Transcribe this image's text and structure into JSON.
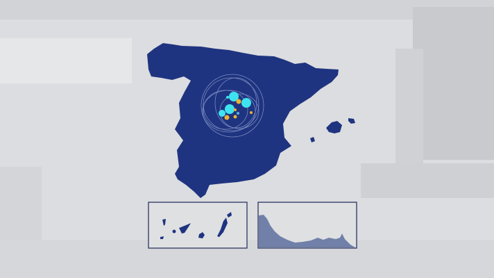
{
  "map": {
    "region": "Spain",
    "land_color": "#1f3480",
    "background_color": "#dcdde0",
    "inset_border_color": "#2a3560",
    "insets": [
      {
        "name": "canary-islands"
      },
      {
        "name": "ceuta-melilla-coast"
      }
    ],
    "markers": {
      "primary_color": "#3fe3f0",
      "secondary_color": "#f0b030"
    }
  }
}
